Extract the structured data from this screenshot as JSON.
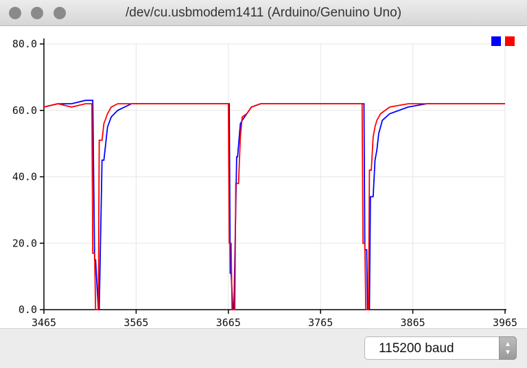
{
  "window": {
    "title": "/dev/cu.usbmodem1411 (Arduino/Genuino Uno)",
    "traffic_lights": [
      "close",
      "minimize",
      "zoom"
    ]
  },
  "chart_data": {
    "type": "line",
    "xlim": [
      3465,
      3965
    ],
    "ylim": [
      0,
      80
    ],
    "x_ticks": [
      "3465",
      "3565",
      "3665",
      "3765",
      "3865",
      "3965"
    ],
    "y_ticks": [
      "0.0",
      "20.0",
      "40.0",
      "60.0",
      "80.0"
    ],
    "grid": true,
    "legend": "top-right",
    "series": [
      {
        "color": "#0000ff",
        "x": [
          3465,
          3480,
          3495,
          3510,
          3518,
          3520,
          3521,
          3524,
          3525,
          3528,
          3530,
          3534,
          3538,
          3545,
          3560,
          3580,
          3600,
          3620,
          3640,
          3655,
          3666,
          3667,
          3668,
          3670,
          3671,
          3674,
          3675,
          3678,
          3680,
          3685,
          3690,
          3700,
          3720,
          3740,
          3760,
          3780,
          3800,
          3812,
          3813,
          3815,
          3816,
          3818,
          3819,
          3822,
          3824,
          3826,
          3828,
          3832,
          3840,
          3860,
          3880,
          3900,
          3920,
          3940,
          3965
        ],
        "y": [
          61,
          62,
          62,
          63,
          63,
          15,
          15,
          0,
          0,
          45,
          45,
          55,
          58,
          60,
          62,
          62,
          62,
          62,
          62,
          62,
          62,
          11,
          11,
          0,
          0,
          46,
          46,
          56,
          57,
          59,
          61,
          62,
          62,
          62,
          62,
          62,
          62,
          62,
          18,
          18,
          0,
          0,
          34,
          34,
          45,
          48,
          53,
          57,
          59,
          61,
          62,
          62,
          62,
          62,
          62
        ]
      },
      {
        "color": "#ff0000",
        "x": [
          3465,
          3480,
          3495,
          3510,
          3517,
          3518,
          3520,
          3521,
          3524,
          3525,
          3528,
          3530,
          3534,
          3538,
          3545,
          3560,
          3580,
          3600,
          3620,
          3640,
          3655,
          3665,
          3666,
          3668,
          3669,
          3672,
          3673,
          3676,
          3678,
          3680,
          3685,
          3690,
          3700,
          3720,
          3740,
          3760,
          3780,
          3800,
          3810,
          3811,
          3813,
          3814,
          3817,
          3818,
          3820,
          3822,
          3824,
          3826,
          3830,
          3840,
          3860,
          3880,
          3900,
          3920,
          3940,
          3965
        ],
        "y": [
          61,
          62,
          61,
          62,
          62,
          17,
          17,
          0,
          0,
          51,
          51,
          56,
          59,
          61,
          62,
          62,
          62,
          62,
          62,
          62,
          62,
          62,
          20,
          20,
          0,
          0,
          38,
          38,
          52,
          58,
          59,
          61,
          62,
          62,
          62,
          62,
          62,
          62,
          62,
          20,
          20,
          0,
          0,
          42,
          42,
          52,
          55,
          57,
          59,
          61,
          62,
          62,
          62,
          62,
          62,
          62
        ]
      }
    ]
  },
  "footer": {
    "baud_rate": "115200 baud",
    "stepper_up": "▲",
    "stepper_down": "▼"
  }
}
